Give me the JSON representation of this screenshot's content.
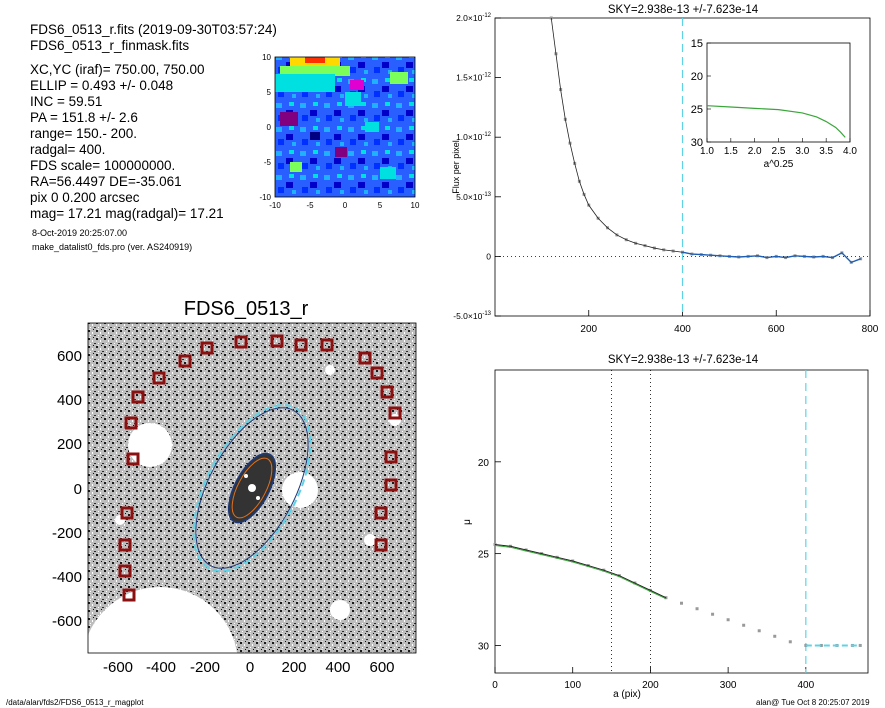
{
  "header": {
    "lines": [
      "FDS6_0513_r.fits  (2019-09-30T03:57:24)",
      "FDS6_0513_r_finmask.fits",
      "XC,YC (iraf)=   750.00, 750.00",
      "ELLIP = 0.493 +/- 0.048",
      "INC   = 59.51",
      "PA    = 151.8 +/-   2.6",
      "range=  150.-  200.",
      "radgal=  400.",
      "FDS scale=  100000000.",
      "RA=56.4497   DE=-35.061",
      "pix 0 0.200 arcsec",
      "mag=  17.21  mag(radgal)=  17.21"
    ],
    "date": "8-Oct-2019 20:25:07.00",
    "program": "make_datalist0_fds.pro (ver. AS240919)"
  },
  "thumbnail": {
    "x_ticks": [
      "-10",
      "-5",
      "0",
      "5",
      "10"
    ],
    "y_ticks": [
      "10",
      "5",
      "0",
      "-5",
      "-10"
    ]
  },
  "image_panel": {
    "title": "FDS6_0513_r",
    "x_ticks": [
      "-600",
      "-400",
      "-200",
      "0",
      "200",
      "400",
      "600"
    ],
    "y_ticks": [
      "600",
      "400",
      "200",
      "0",
      "-200",
      "-400",
      "-600"
    ]
  },
  "footer": {
    "left": "/data/alan/fds2/FDS6_0513_r_magplot",
    "right": "alan@  Tue Oct  8 20:25:07 2019"
  },
  "colors": {
    "sky_line": "#5fd3e6",
    "profile_green": "#3aa63a",
    "profile_blue": "#1e5fb4",
    "box_red": "#8b1010"
  },
  "chart_data": [
    {
      "type": "scatter",
      "title": "SKY=2.938e-13 +/-7.623e-14",
      "xlabel": "",
      "ylabel": "Flux per pixel",
      "xlim": [
        0,
        800
      ],
      "ylim": [
        -5e-13,
        2e-12
      ],
      "x_ticks": [
        "200",
        "400",
        "600",
        "800"
      ],
      "y_ticks": [
        {
          "mant": "2.0",
          "exp": "-12"
        },
        {
          "mant": "1.5",
          "exp": "-12"
        },
        {
          "mant": "1.0",
          "exp": "-12"
        },
        {
          "mant": "5.0",
          "exp": "-13"
        },
        {
          "mant": "0",
          "exp": ""
        },
        {
          "mant": "-5.0",
          "exp": "-13"
        }
      ],
      "sky_radius": 400,
      "points_x": [
        120,
        130,
        140,
        150,
        160,
        170,
        180,
        190,
        200,
        220,
        240,
        260,
        280,
        300,
        320,
        340,
        360,
        380,
        400,
        420,
        440,
        460,
        480,
        500,
        520,
        540,
        560,
        580,
        600,
        620,
        640,
        660,
        680,
        700,
        720,
        740,
        760,
        780
      ],
      "points_y": [
        2e-12,
        1.7e-12,
        1.4e-12,
        1.15e-12,
        9.5e-13,
        7.8e-13,
        6.3e-13,
        5.2e-13,
        4.3e-13,
        3.2e-13,
        2.4e-13,
        1.8e-13,
        1.4e-13,
        1.1e-13,
        9e-14,
        7e-14,
        5.5e-14,
        4.5e-14,
        3.5e-14,
        2e-14,
        1.5e-14,
        1e-14,
        5e-15,
        0,
        -5e-15,
        0,
        5e-15,
        -1e-14,
        0,
        -1e-14,
        5e-15,
        0,
        -5e-15,
        0,
        -1e-14,
        3e-14,
        -5e-14,
        -2e-14
      ],
      "inset": {
        "xlabel": "a^0.25",
        "xlim": [
          1.0,
          4.0
        ],
        "ylim": [
          15,
          30
        ],
        "x_ticks": [
          "1.0",
          "1.5",
          "2.0",
          "2.5",
          "3.0",
          "3.5",
          "4.0"
        ],
        "y_ticks": [
          "15",
          "20",
          "25",
          "30"
        ],
        "x": [
          1.0,
          1.5,
          2.0,
          2.5,
          3.0,
          3.3,
          3.5,
          3.7,
          3.8,
          3.9
        ],
        "y": [
          24.5,
          24.7,
          24.9,
          25.1,
          25.6,
          26.2,
          26.9,
          27.8,
          28.5,
          29.3
        ]
      }
    },
    {
      "type": "line",
      "title": "SKY=2.938e-13 +/-7.623e-14",
      "xlabel": "a (pix)",
      "ylabel": "μ",
      "xlim": [
        0,
        480
      ],
      "ylim": [
        31.5,
        15
      ],
      "x_ticks": [
        "0",
        "100",
        "200",
        "300",
        "400"
      ],
      "y_ticks": [
        "20",
        "25",
        "30"
      ],
      "range_lines": [
        150,
        200
      ],
      "sky_radius": 400,
      "x": [
        0,
        20,
        40,
        60,
        80,
        100,
        120,
        140,
        160,
        180,
        200,
        220,
        240,
        260,
        280,
        300,
        320,
        340,
        360,
        380,
        400,
        420,
        440,
        460,
        470
      ],
      "y": [
        24.5,
        24.6,
        24.8,
        25.0,
        25.2,
        25.4,
        25.65,
        25.9,
        26.2,
        26.6,
        27.0,
        27.4,
        27.7,
        28.0,
        28.3,
        28.6,
        28.9,
        29.2,
        29.5,
        29.8,
        30.0,
        30.0,
        30.0,
        30.0,
        30.0
      ]
    }
  ]
}
